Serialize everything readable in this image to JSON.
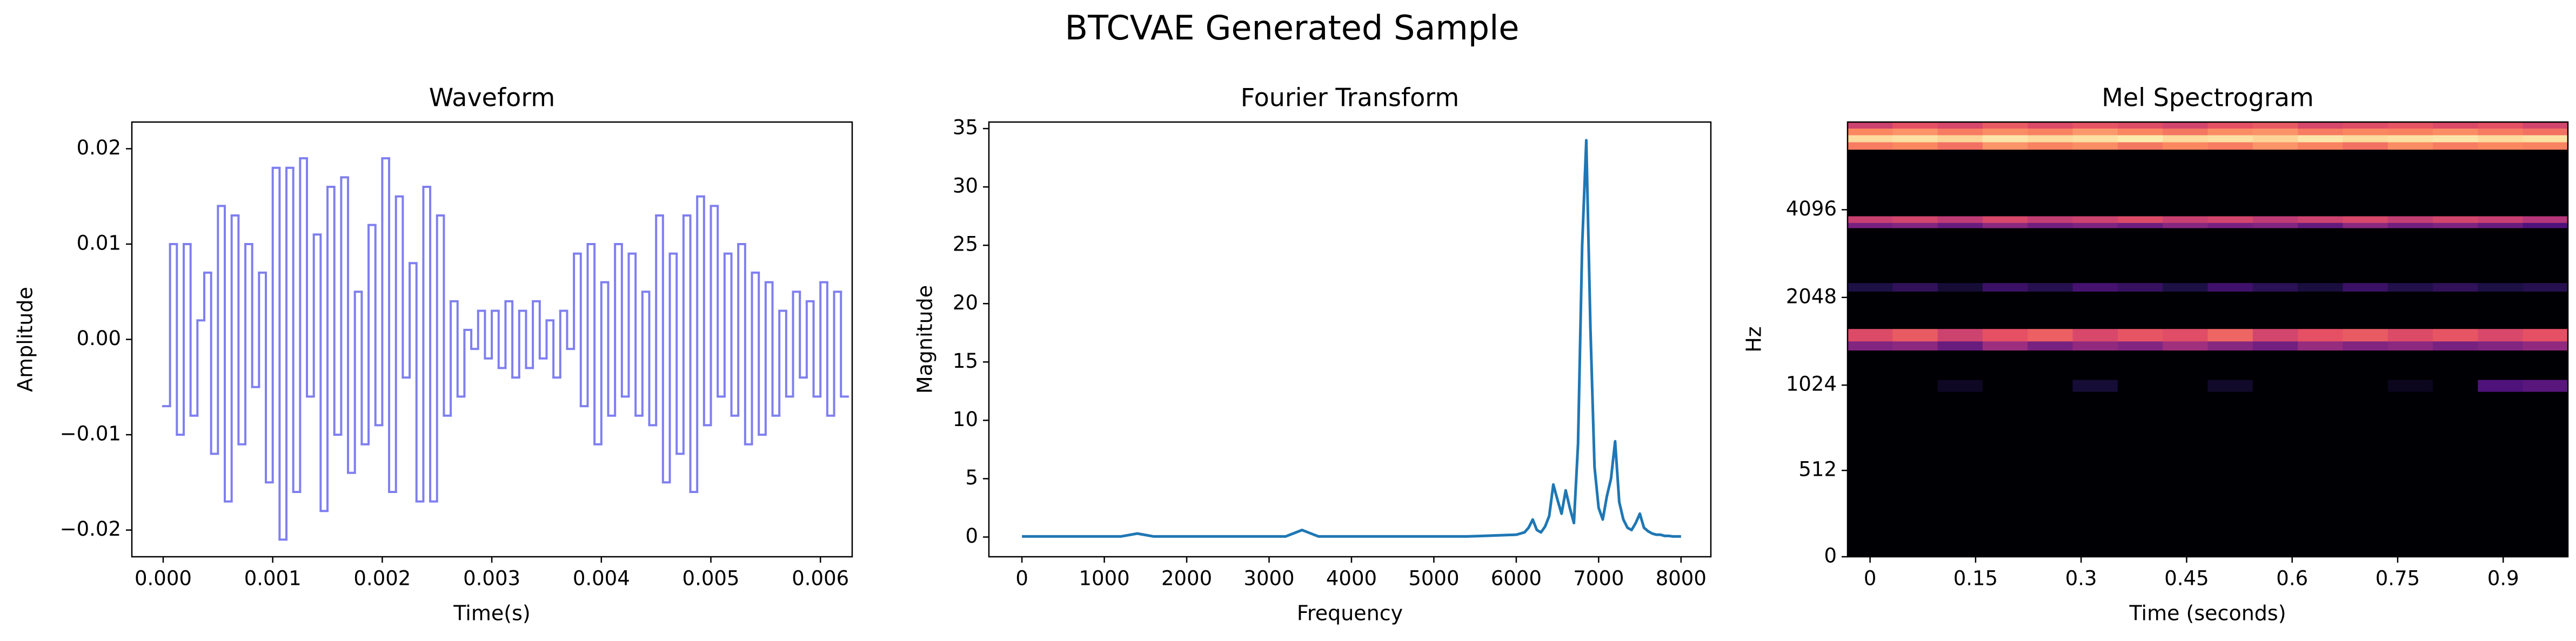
{
  "title": "BTCVAE Generated Sample",
  "chart_data": [
    {
      "type": "step",
      "title": "Waveform",
      "x_label": "Time(s)",
      "y_label": "Amplitude",
      "color": "#7f7ff0",
      "x": [
        0,
        6.25e-05,
        0.000125,
        0.0001875,
        0.00025,
        0.0003125,
        0.000375,
        0.0004375,
        0.0005,
        0.0005625,
        0.000625,
        0.0006875,
        0.00075,
        0.0008125,
        0.000875,
        0.0009375,
        0.001,
        0.0010625,
        0.001125,
        0.0011875,
        0.00125,
        0.0013125,
        0.001375,
        0.0014375,
        0.0015,
        0.0015625,
        0.001625,
        0.0016875,
        0.00175,
        0.0018125,
        0.001875,
        0.0019375,
        0.002,
        0.0020625,
        0.002125,
        0.0021875,
        0.00225,
        0.0023125,
        0.002375,
        0.0024375,
        0.0025,
        0.0025625,
        0.002625,
        0.0026875,
        0.00275,
        0.0028125,
        0.002875,
        0.0029375,
        0.003,
        0.0030625,
        0.003125,
        0.0031875,
        0.00325,
        0.0033125,
        0.003375,
        0.0034375,
        0.0035,
        0.0035625,
        0.003625,
        0.0036875,
        0.00375,
        0.0038125,
        0.003875,
        0.0039375,
        0.004,
        0.0040625,
        0.004125,
        0.0041875,
        0.00425,
        0.0043125,
        0.004375,
        0.0044375,
        0.0045,
        0.0045625,
        0.004625,
        0.0046875,
        0.00475,
        0.0048125,
        0.004875,
        0.0049375,
        0.005,
        0.0050625,
        0.005125,
        0.0051875,
        0.00525,
        0.0053125,
        0.005375,
        0.0054375,
        0.0055,
        0.0055625,
        0.005625,
        0.0056875,
        0.00575,
        0.0058125,
        0.005875,
        0.0059375,
        0.006,
        0.0060625,
        0.006125,
        0.0061875
      ],
      "values": [
        -0.007,
        0.01,
        -0.01,
        0.01,
        -0.008,
        0.002,
        0.007,
        -0.012,
        0.014,
        -0.017,
        0.013,
        -0.011,
        0.01,
        -0.005,
        0.007,
        -0.015,
        0.018,
        -0.021,
        0.018,
        -0.016,
        0.019,
        -0.006,
        0.011,
        -0.018,
        0.016,
        -0.01,
        0.017,
        -0.014,
        0.005,
        -0.011,
        0.012,
        -0.009,
        0.019,
        -0.016,
        0.015,
        -0.004,
        0.008,
        -0.017,
        0.016,
        -0.017,
        0.013,
        -0.008,
        0.004,
        -0.006,
        0.001,
        -0.001,
        0.003,
        -0.002,
        0.003,
        -0.003,
        0.004,
        -0.004,
        0.003,
        -0.003,
        0.004,
        -0.002,
        0.002,
        -0.004,
        0.003,
        -0.001,
        0.009,
        -0.007,
        0.01,
        -0.011,
        0.006,
        -0.008,
        0.01,
        -0.006,
        0.009,
        -0.008,
        0.005,
        -0.009,
        0.013,
        -0.015,
        0.009,
        -0.012,
        0.013,
        -0.016,
        0.015,
        -0.009,
        0.014,
        -0.006,
        0.009,
        -0.008,
        0.01,
        -0.011,
        0.007,
        -0.01,
        0.006,
        -0.008,
        0.003,
        -0.006,
        0.005,
        -0.004,
        0.004,
        -0.006,
        0.006,
        -0.008,
        0.005,
        -0.006
      ],
      "xlim": [
        -0.000286,
        0.00629
      ],
      "ylim": [
        -0.0228,
        0.0228
      ],
      "xticks": [
        {
          "value": 0,
          "label": "0.000"
        },
        {
          "value": 0.001,
          "label": "0.001"
        },
        {
          "value": 0.002,
          "label": "0.002"
        },
        {
          "value": 0.003,
          "label": "0.003"
        },
        {
          "value": 0.004,
          "label": "0.004"
        },
        {
          "value": 0.005,
          "label": "0.005"
        },
        {
          "value": 0.006,
          "label": "0.006"
        }
      ],
      "yticks": [
        {
          "value": -0.02,
          "label": "−0.02"
        },
        {
          "value": -0.01,
          "label": "−0.01"
        },
        {
          "value": 0,
          "label": "0.00"
        },
        {
          "value": 0.01,
          "label": "0.01"
        },
        {
          "value": 0.02,
          "label": "0.02"
        }
      ]
    },
    {
      "type": "line",
      "title": "Fourier Transform",
      "x_label": "Frequency",
      "y_label": "Magnitude",
      "color": "#1f77b4",
      "x": [
        0,
        200,
        400,
        600,
        800,
        1000,
        1200,
        1400,
        1600,
        1800,
        2000,
        2200,
        2400,
        2600,
        2800,
        3000,
        3200,
        3400,
        3600,
        3800,
        4000,
        4200,
        4400,
        4600,
        4800,
        5000,
        5200,
        5400,
        5600,
        5800,
        6000,
        6050,
        6100,
        6150,
        6200,
        6250,
        6300,
        6350,
        6400,
        6450,
        6500,
        6550,
        6600,
        6650,
        6700,
        6750,
        6800,
        6850,
        6900,
        6950,
        7000,
        7050,
        7100,
        7150,
        7200,
        7250,
        7300,
        7350,
        7400,
        7450,
        7500,
        7550,
        7600,
        7650,
        7700,
        7750,
        7800,
        7850,
        7900,
        7950,
        8000
      ],
      "values": [
        0.05,
        0.05,
        0.05,
        0.05,
        0.05,
        0.05,
        0.05,
        0.3,
        0.05,
        0.05,
        0.05,
        0.05,
        0.05,
        0.05,
        0.05,
        0.05,
        0.05,
        0.6,
        0.05,
        0.05,
        0.05,
        0.05,
        0.05,
        0.05,
        0.05,
        0.05,
        0.05,
        0.05,
        0.1,
        0.15,
        0.2,
        0.3,
        0.4,
        0.8,
        1.5,
        0.6,
        0.4,
        0.9,
        1.8,
        4.5,
        3.2,
        2.0,
        4.0,
        2.5,
        1.2,
        8,
        25,
        34,
        18,
        6,
        2.5,
        1.5,
        3.5,
        5,
        8.2,
        3,
        1.5,
        0.8,
        0.6,
        1.2,
        2.0,
        0.8,
        0.5,
        0.3,
        0.2,
        0.2,
        0.1,
        0.1,
        0.05,
        0.05,
        0.05
      ],
      "xlim": [
        -401,
        8362
      ],
      "ylim": [
        -1.69,
        35.56
      ],
      "xticks": [
        0,
        1000,
        2000,
        3000,
        4000,
        5000,
        6000,
        7000,
        8000
      ],
      "yticks": [
        0,
        5,
        10,
        15,
        20,
        25,
        30,
        35
      ]
    },
    {
      "type": "heatmap",
      "title": "Mel Spectrogram",
      "x_label": "Time (seconds)",
      "y_label": "Hz",
      "colormap": "magma",
      "clim": [
        -80,
        0
      ],
      "yscale": "symlog",
      "linthresh": 1000,
      "x": [
        0,
        0.064,
        0.128,
        0.192,
        0.256,
        0.32,
        0.384,
        0.448,
        0.512,
        0.576,
        0.64,
        0.704,
        0.768,
        0.832,
        0.896,
        0.96
      ],
      "y_edges": [
        0,
        980,
        1070,
        1350,
        1450,
        1600,
        2150,
        2300,
        3550,
        3700,
        3900,
        6600,
        7000,
        7400,
        7800,
        8192
      ],
      "values": [
        [
          -80,
          -80,
          -80,
          -80,
          -80,
          -80,
          -80,
          -80,
          -80,
          -80,
          -80,
          -80,
          -80,
          -80,
          -80,
          -80
        ],
        [
          -80,
          -80,
          -75,
          -80,
          -80,
          -72,
          -80,
          -80,
          -74,
          -80,
          -80,
          -80,
          -76,
          -80,
          -60,
          -58
        ],
        [
          -80,
          -80,
          -80,
          -80,
          -80,
          -80,
          -80,
          -80,
          -80,
          -80,
          -80,
          -80,
          -80,
          -80,
          -80,
          -80
        ],
        [
          -50,
          -48,
          -55,
          -45,
          -52,
          -47,
          -50,
          -44,
          -49,
          -53,
          -46,
          -50,
          -48,
          -52,
          -50,
          -47
        ],
        [
          -32,
          -28,
          -35,
          -30,
          -27,
          -33,
          -29,
          -31,
          -26,
          -34,
          -30,
          -28,
          -32,
          -29,
          -33,
          -30
        ],
        [
          -80,
          -80,
          -80,
          -80,
          -80,
          -80,
          -80,
          -80,
          -80,
          -80,
          -80,
          -80,
          -80,
          -80,
          -80,
          -80
        ],
        [
          -70,
          -66,
          -72,
          -64,
          -68,
          -62,
          -65,
          -70,
          -63,
          -67,
          -71,
          -64,
          -69,
          -66,
          -70,
          -68
        ],
        [
          -80,
          -80,
          -80,
          -80,
          -80,
          -80,
          -80,
          -80,
          -80,
          -80,
          -80,
          -80,
          -80,
          -80,
          -80,
          -80
        ],
        [
          -52,
          -50,
          -55,
          -48,
          -53,
          -51,
          -54,
          -49,
          -52,
          -50,
          -56,
          -48,
          -53,
          -51,
          -55,
          -60
        ],
        [
          -36,
          -34,
          -38,
          -33,
          -37,
          -35,
          -32,
          -36,
          -34,
          -38,
          -35,
          -33,
          -37,
          -34,
          -36,
          -40
        ],
        [
          -80,
          -80,
          -80,
          -80,
          -80,
          -80,
          -80,
          -80,
          -80,
          -80,
          -80,
          -80,
          -80,
          -80,
          -80,
          -80
        ],
        [
          -22,
          -20,
          -24,
          -18,
          -21,
          -19,
          -23,
          -20,
          -22,
          -18,
          -21,
          -24,
          -19,
          -22,
          -20,
          -21
        ],
        [
          -6,
          -5,
          -7,
          -4,
          -6,
          -5,
          -3,
          -6,
          -5,
          -7,
          -4,
          -6,
          -5,
          -4,
          -6,
          -5
        ],
        [
          -20,
          -18,
          -22,
          -19,
          -21,
          -17,
          -20,
          -23,
          -19,
          -18,
          -22,
          -20,
          -21,
          -19,
          -22,
          -24
        ],
        [
          -35,
          -30,
          -33,
          -28,
          -32,
          -29,
          -31,
          -34,
          -30,
          -28,
          -33,
          -31,
          -29,
          -32,
          -30,
          -34
        ]
      ],
      "xlim": [
        -0.032,
        0.992
      ],
      "ylim": [
        0,
        8192
      ],
      "xticks": [
        0,
        0.15,
        0.3,
        0.45,
        0.6,
        0.75,
        0.9
      ],
      "yticks": [
        0,
        512,
        1024,
        2048,
        4096
      ]
    }
  ]
}
